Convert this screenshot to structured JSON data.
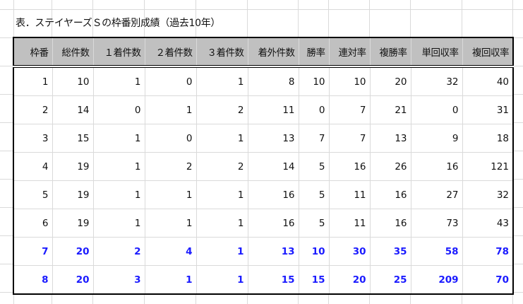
{
  "title": "表．ステイヤーズＳの枠番別成績（過去10年）",
  "colors": {
    "header_bg": "#c0c0c0",
    "highlight_text": "#1a1aff",
    "grid": "#dadada"
  },
  "table": {
    "headers": [
      "枠番",
      "総件数",
      "１着件数",
      "２着件数",
      "３着件数",
      "着外件数",
      "勝率",
      "連対率",
      "複勝率",
      "単回収率",
      "複回収率"
    ],
    "rows": [
      {
        "highlight": false,
        "cells": [
          "1",
          "10",
          "1",
          "0",
          "1",
          "8",
          "10",
          "10",
          "20",
          "32",
          "40"
        ]
      },
      {
        "highlight": false,
        "cells": [
          "2",
          "14",
          "0",
          "1",
          "2",
          "11",
          "0",
          "7",
          "21",
          "0",
          "31"
        ]
      },
      {
        "highlight": false,
        "cells": [
          "3",
          "15",
          "1",
          "0",
          "1",
          "13",
          "7",
          "7",
          "13",
          "9",
          "18"
        ]
      },
      {
        "highlight": false,
        "cells": [
          "4",
          "19",
          "1",
          "2",
          "2",
          "14",
          "5",
          "16",
          "26",
          "16",
          "121"
        ]
      },
      {
        "highlight": false,
        "cells": [
          "5",
          "19",
          "1",
          "1",
          "1",
          "16",
          "5",
          "11",
          "16",
          "27",
          "32"
        ]
      },
      {
        "highlight": false,
        "cells": [
          "6",
          "19",
          "1",
          "1",
          "1",
          "16",
          "5",
          "11",
          "16",
          "73",
          "43"
        ]
      },
      {
        "highlight": true,
        "cells": [
          "7",
          "20",
          "2",
          "4",
          "1",
          "13",
          "10",
          "30",
          "35",
          "58",
          "78"
        ]
      },
      {
        "highlight": true,
        "cells": [
          "8",
          "20",
          "3",
          "1",
          "1",
          "15",
          "15",
          "20",
          "25",
          "209",
          "70"
        ]
      }
    ]
  }
}
